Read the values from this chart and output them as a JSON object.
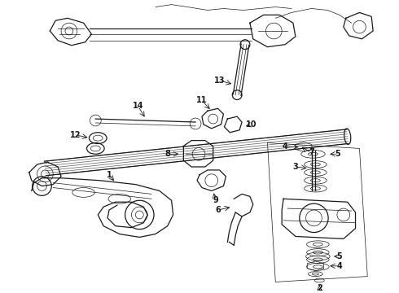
{
  "bg_color": "#ffffff",
  "line_color": "#1a1a1a",
  "figsize": [
    4.9,
    3.6
  ],
  "dpi": 100,
  "lw_thin": 0.5,
  "lw_med": 0.9,
  "lw_thick": 1.4
}
